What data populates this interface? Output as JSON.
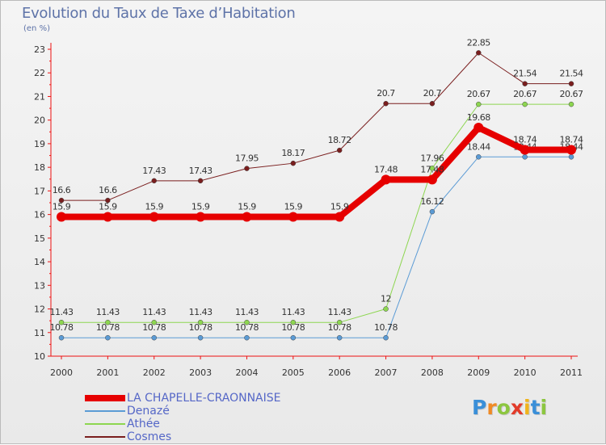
{
  "header": {
    "title": "Evolution du Taux de Taxe d’Habitation",
    "unit": "(en %)"
  },
  "logo": {
    "text": "Proxiti",
    "letters": [
      {
        "ch": "P",
        "color": "#3a8fd8"
      },
      {
        "ch": "r",
        "color": "#f08a24"
      },
      {
        "ch": "o",
        "color": "#8cc63f"
      },
      {
        "ch": "x",
        "color": "#e23b2a"
      },
      {
        "ch": "i",
        "color": "#f0b41c"
      },
      {
        "ch": "t",
        "color": "#3a8fd8"
      },
      {
        "ch": "i",
        "color": "#8cc63f"
      }
    ]
  },
  "chart_data": {
    "type": "line",
    "title": "Evolution du Taux de Taxe d’Habitation",
    "ylabel": "(en %)",
    "xlabel": "",
    "x": [
      "2000",
      "2001",
      "2002",
      "2003",
      "2004",
      "2005",
      "2006",
      "2007",
      "2008",
      "2009",
      "2010",
      "2011"
    ],
    "ylim": [
      10,
      23
    ],
    "yticks": [
      "10",
      "11",
      "12",
      "13",
      "14",
      "15",
      "16",
      "17",
      "18",
      "19",
      "20",
      "21",
      "22",
      "23"
    ],
    "grid": false,
    "legend_position": "bottom-left",
    "series": [
      {
        "name": "Cosmes",
        "color": "#7a1e1e",
        "width": 1,
        "values": [
          16.6,
          16.6,
          17.43,
          17.43,
          17.95,
          18.17,
          18.72,
          20.7,
          20.7,
          22.85,
          21.54,
          21.54
        ],
        "labels": [
          "16.6",
          "16.6",
          "17.43",
          "17.43",
          "17.95",
          "18.17",
          "18.72",
          "20.7",
          "20.7",
          "22.85",
          "21.54",
          "21.54"
        ]
      },
      {
        "name": "Athée",
        "color": "#8dd650",
        "width": 1,
        "values": [
          11.43,
          11.43,
          11.43,
          11.43,
          11.43,
          11.43,
          11.43,
          12,
          17.96,
          20.67,
          20.67,
          20.67
        ],
        "labels": [
          "11.43",
          "11.43",
          "11.43",
          "11.43",
          "11.43",
          "11.43",
          "11.43",
          "12",
          "17.96",
          "20.67",
          "20.67",
          "20.67"
        ]
      },
      {
        "name": "Denazé",
        "color": "#5b9bd5",
        "width": 1,
        "values": [
          10.78,
          10.78,
          10.78,
          10.78,
          10.78,
          10.78,
          10.78,
          10.78,
          16.12,
          18.44,
          18.44,
          18.44
        ],
        "labels": [
          "10.78",
          "10.78",
          "10.78",
          "10.78",
          "10.78",
          "10.78",
          "10.78",
          "10.78",
          "16.12",
          "18.44",
          "18.44",
          "18.44"
        ]
      },
      {
        "name": "LA CHAPELLE-CRAONNAISE",
        "color": "#e60000",
        "width": 8,
        "values": [
          15.9,
          15.9,
          15.9,
          15.9,
          15.9,
          15.9,
          15.9,
          17.48,
          17.48,
          19.68,
          18.74,
          18.74
        ],
        "labels": [
          "15.9",
          "15.9",
          "15.9",
          "15.9",
          "15.9",
          "15.9",
          "15.9",
          "17.48",
          "17.48",
          "19.68",
          "18.74",
          "18.74"
        ]
      }
    ],
    "legend": [
      "LA CHAPELLE-CRAONNAISE",
      "Denazé",
      "Athée",
      "Cosmes"
    ]
  }
}
